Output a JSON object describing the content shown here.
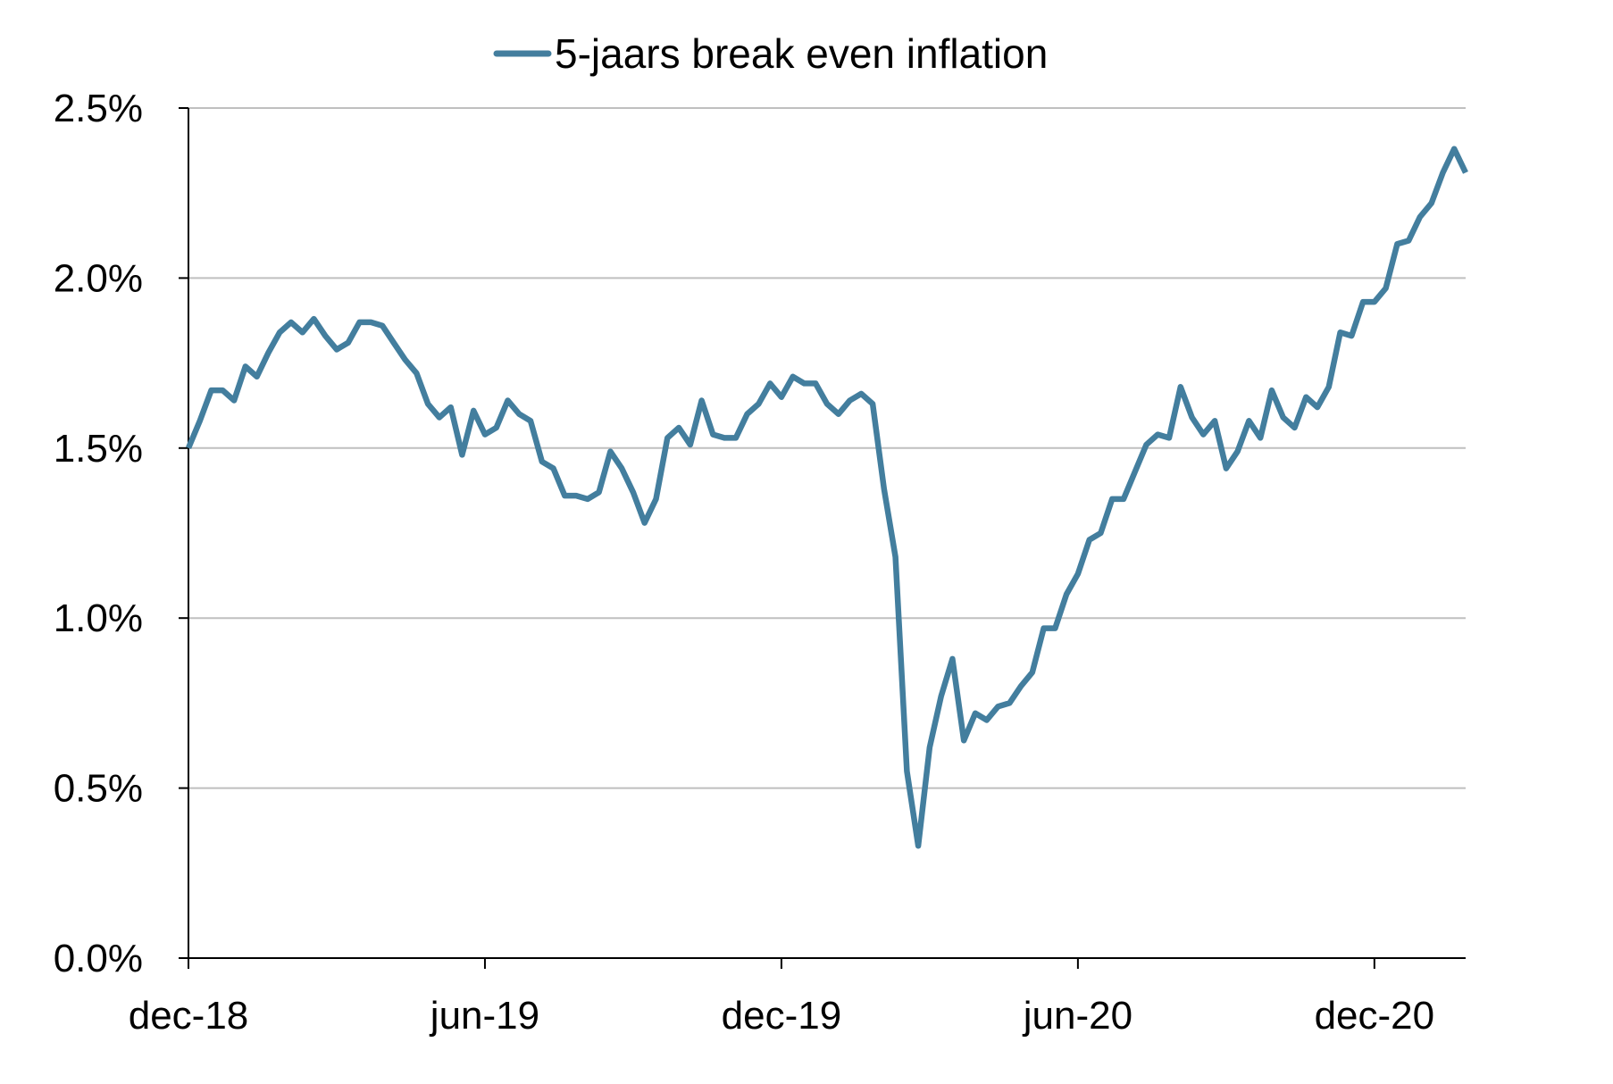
{
  "chart_data": {
    "type": "line",
    "title": "",
    "xlabel": "",
    "ylabel": "",
    "legend": {
      "position": "top-center"
    },
    "grid": {
      "y": true,
      "x": false
    },
    "colors": {
      "series": "#437E9E",
      "grid": "#BFBFBF",
      "axis": "#000000"
    },
    "x_ticks": [
      "dec-18",
      "jun-19",
      "dec-19",
      "jun-20",
      "dec-20"
    ],
    "y_ticks": [
      "0.0%",
      "0.5%",
      "1.0%",
      "1.5%",
      "2.0%",
      "2.5%"
    ],
    "y_tick_values": [
      0.0,
      0.5,
      1.0,
      1.5,
      2.0,
      2.5
    ],
    "ylim": [
      0.0,
      2.5
    ],
    "x_period": {
      "start": "dec-18",
      "end": "jan-21",
      "frequency": "weekly"
    },
    "series": [
      {
        "name": "5-jaars break even inflation",
        "values": [
          1.5,
          1.58,
          1.67,
          1.67,
          1.64,
          1.74,
          1.71,
          1.78,
          1.84,
          1.87,
          1.84,
          1.88,
          1.83,
          1.79,
          1.81,
          1.87,
          1.87,
          1.86,
          1.81,
          1.76,
          1.72,
          1.63,
          1.59,
          1.62,
          1.48,
          1.61,
          1.54,
          1.56,
          1.64,
          1.6,
          1.58,
          1.46,
          1.44,
          1.36,
          1.36,
          1.35,
          1.37,
          1.49,
          1.44,
          1.37,
          1.28,
          1.35,
          1.53,
          1.56,
          1.51,
          1.64,
          1.54,
          1.53,
          1.53,
          1.6,
          1.63,
          1.69,
          1.65,
          1.71,
          1.69,
          1.69,
          1.63,
          1.6,
          1.64,
          1.66,
          1.63,
          1.38,
          1.18,
          0.55,
          0.33,
          0.62,
          0.77,
          0.88,
          0.64,
          0.72,
          0.7,
          0.74,
          0.75,
          0.8,
          0.84,
          0.97,
          0.97,
          1.07,
          1.13,
          1.23,
          1.25,
          1.35,
          1.35,
          1.43,
          1.51,
          1.54,
          1.53,
          1.68,
          1.59,
          1.54,
          1.58,
          1.44,
          1.49,
          1.58,
          1.53,
          1.67,
          1.59,
          1.56,
          1.65,
          1.62,
          1.68,
          1.84,
          1.83,
          1.93,
          1.93,
          1.97,
          2.1,
          2.11,
          2.18,
          2.22,
          2.31,
          2.38,
          2.31
        ]
      }
    ]
  }
}
